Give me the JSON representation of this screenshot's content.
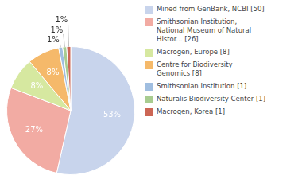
{
  "chart_data": {
    "type": "pie",
    "categories": [
      "Mined from GenBank, NCBI [50]",
      "Smithsonian Institution,\nNational Museum of Natural\nHistor... [26]",
      "Macrogen, Europe [8]",
      "Centre for Biodiversity\nGenomics [8]",
      "Smithsonian Institution [1]",
      "Naturalis Biodiversity Center [1]",
      "Macrogen, Korea [1]"
    ],
    "values": [
      53,
      27,
      8,
      8,
      1,
      1,
      1
    ],
    "value_labels": [
      "53%",
      "27%",
      "8%",
      "8%",
      "1%",
      "1%",
      "1%"
    ],
    "colors": [
      "#c8d4ec",
      "#f2aba3",
      "#d6e8a0",
      "#f5b96a",
      "#a0bee0",
      "#a8cc90",
      "#cc6655"
    ],
    "legend": "right",
    "data_labels": true
  }
}
